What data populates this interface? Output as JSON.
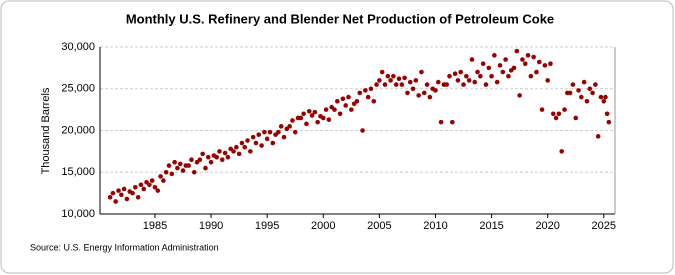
{
  "chart_data": {
    "type": "scatter",
    "title": "Monthly U.S. Refinery and Blender Net Production of Petroleum Coke",
    "y_label": "Thousand Barrels",
    "source": "Source: U.S. Energy Information Administration",
    "color": "#990000",
    "grid": true,
    "xlim": [
      1980.1,
      2026
    ],
    "xticks": [
      1985,
      1990,
      1995,
      2000,
      2005,
      2010,
      2015,
      2020,
      2025
    ],
    "ylim": [
      10000,
      30000
    ],
    "yticks": [
      {
        "value": 10000,
        "label": "10,000"
      },
      {
        "value": 15000,
        "label": "15,000"
      },
      {
        "value": 20000,
        "label": "20,000"
      },
      {
        "value": 25000,
        "label": "25,000"
      },
      {
        "value": 30000,
        "label": "30,000"
      }
    ],
    "x": [
      1981,
      1981.25,
      1981.5,
      1981.75,
      1982,
      1982.25,
      1982.5,
      1982.75,
      1983,
      1983.25,
      1983.5,
      1983.75,
      1984,
      1984.25,
      1984.5,
      1984.75,
      1985,
      1985.25,
      1985.5,
      1985.75,
      1986,
      1986.25,
      1986.5,
      1986.75,
      1987,
      1987.25,
      1987.5,
      1987.75,
      1988,
      1988.25,
      1988.5,
      1988.75,
      1989,
      1989.25,
      1989.5,
      1989.75,
      1990,
      1990.25,
      1990.5,
      1990.75,
      1991,
      1991.25,
      1991.5,
      1991.75,
      1992,
      1992.25,
      1992.5,
      1992.75,
      1993,
      1993.25,
      1993.5,
      1993.75,
      1994,
      1994.25,
      1994.5,
      1994.75,
      1995,
      1995.25,
      1995.5,
      1995.75,
      1996,
      1996.25,
      1996.5,
      1996.75,
      1997,
      1997.25,
      1997.5,
      1997.75,
      1998,
      1998.25,
      1998.5,
      1998.75,
      1999,
      1999.25,
      1999.5,
      1999.75,
      2000,
      2000.25,
      2000.5,
      2000.75,
      2001,
      2001.25,
      2001.5,
      2001.75,
      2002,
      2002.25,
      2002.5,
      2002.75,
      2003,
      2003.25,
      2003.5,
      2003.75,
      2004,
      2004.25,
      2004.5,
      2004.75,
      2005,
      2005.25,
      2005.5,
      2005.75,
      2006,
      2006.25,
      2006.5,
      2006.75,
      2007,
      2007.25,
      2007.5,
      2007.75,
      2008,
      2008.25,
      2008.5,
      2008.75,
      2009,
      2009.25,
      2009.5,
      2009.75,
      2010,
      2010.25,
      2010.5,
      2010.75,
      2011,
      2011.25,
      2011.5,
      2011.75,
      2012,
      2012.25,
      2012.5,
      2012.75,
      2013,
      2013.25,
      2013.5,
      2013.75,
      2014,
      2014.25,
      2014.5,
      2014.75,
      2015,
      2015.25,
      2015.5,
      2015.75,
      2016,
      2016.25,
      2016.5,
      2016.75,
      2017,
      2017.25,
      2017.5,
      2017.75,
      2018,
      2018.25,
      2018.5,
      2018.75,
      2019,
      2019.25,
      2019.5,
      2019.75,
      2020,
      2020.25,
      2020.5,
      2020.75,
      2021,
      2021.25,
      2021.5,
      2021.75,
      2022,
      2022.25,
      2022.5,
      2022.75,
      2023,
      2023.25,
      2023.5,
      2023.75,
      2024,
      2024.25,
      2024.5,
      2024.75,
      2025,
      2025.15,
      2025.3,
      2025.45
    ],
    "values": [
      12000,
      12500,
      11500,
      12800,
      12300,
      13000,
      11800,
      12700,
      12500,
      13200,
      12000,
      13500,
      13000,
      13800,
      13500,
      14000,
      13200,
      12800,
      14500,
      14000,
      15000,
      15800,
      14800,
      16200,
      15500,
      16000,
      15200,
      15800,
      15800,
      16500,
      15000,
      16200,
      16500,
      17200,
      15500,
      16800,
      16200,
      17000,
      16800,
      17500,
      16500,
      17300,
      16800,
      17800,
      17500,
      18000,
      17200,
      18500,
      18000,
      18800,
      17500,
      19200,
      18500,
      19500,
      18200,
      19800,
      19000,
      19800,
      18500,
      19500,
      19800,
      20500,
      19200,
      20200,
      20500,
      21200,
      19800,
      21500,
      21500,
      22000,
      20800,
      22300,
      21800,
      22200,
      21000,
      21700,
      21500,
      22500,
      21300,
      22800,
      22500,
      23500,
      22000,
      23800,
      23000,
      24000,
      22500,
      23200,
      23500,
      24500,
      20000,
      24800,
      24000,
      25000,
      23500,
      25500,
      26000,
      27000,
      25500,
      26500,
      26000,
      26500,
      25500,
      26200,
      25500,
      26300,
      24500,
      25800,
      25000,
      26000,
      24200,
      27000,
      24500,
      25500,
      24000,
      25000,
      24800,
      25800,
      21000,
      25500,
      25500,
      26500,
      21000,
      26800,
      26000,
      27000,
      25500,
      26500,
      26000,
      28500,
      25800,
      27000,
      26500,
      28000,
      25500,
      27500,
      26500,
      29000,
      25800,
      27800,
      27000,
      28500,
      26500,
      27200,
      27500,
      29500,
      24200,
      28500,
      28000,
      29000,
      26500,
      28800,
      27000,
      28200,
      22500,
      27800,
      26000,
      28000,
      22000,
      21500,
      22000,
      17500,
      22500,
      24500,
      24500,
      25500,
      21500,
      24800,
      24000,
      25800,
      23500,
      25000,
      24500,
      25500,
      19300,
      24000,
      23500,
      24000,
      22000,
      21000
    ]
  }
}
